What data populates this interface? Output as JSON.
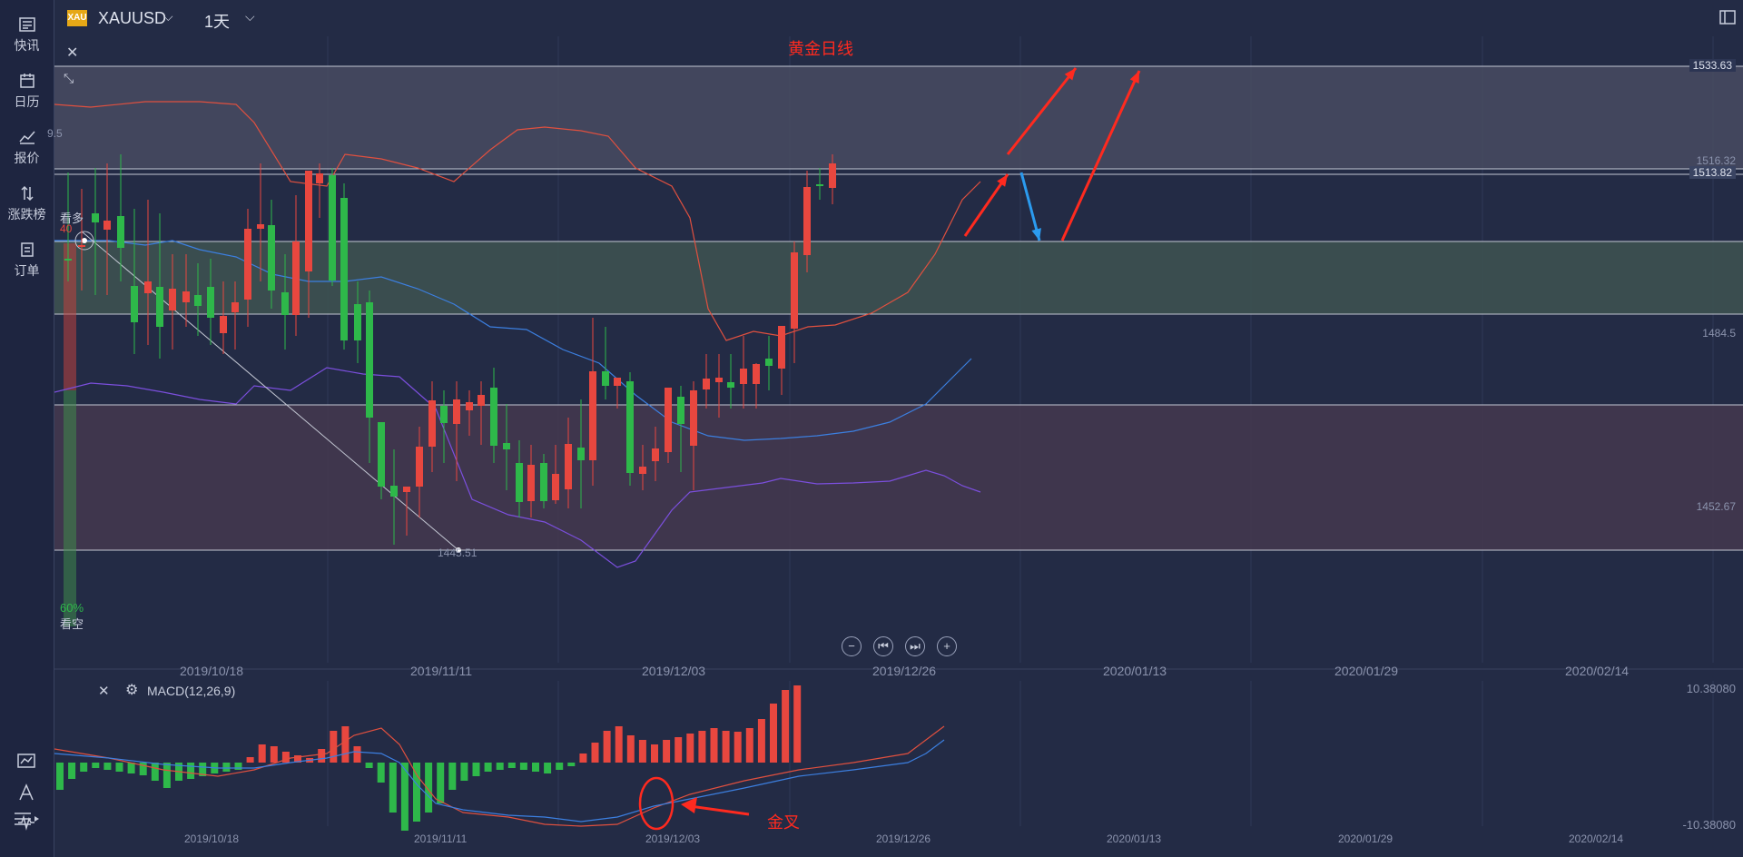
{
  "sidebar": {
    "items": [
      {
        "label": "快讯",
        "icon": "news-icon"
      },
      {
        "label": "日历",
        "icon": "calendar-icon"
      },
      {
        "label": "报价",
        "icon": "quote-chart-icon"
      },
      {
        "label": "涨跌榜",
        "icon": "updown-arrows-icon"
      },
      {
        "label": "订单",
        "icon": "order-icon"
      }
    ],
    "bottom_icons": [
      "indicator-icon",
      "drawing-tool-icon",
      "wave-icon",
      "menu-icon"
    ]
  },
  "toolbar": {
    "symbol_badge": "XAU",
    "symbol": "XAUUSD",
    "timeframe": "1天"
  },
  "chart": {
    "title": "黄金日线",
    "sentiment": {
      "bull_label": "看多",
      "bull_pct": "40",
      "bear_pct": "60%",
      "bear_label": "看空"
    },
    "price_labels": [
      {
        "text": "1533.63",
        "boxed": true
      },
      {
        "text": "1516.32",
        "boxed": false
      },
      {
        "text": "1513.82",
        "boxed": true
      },
      {
        "text": "1484.5",
        "boxed": false
      },
      {
        "text": "1452.67",
        "boxed": false
      }
    ],
    "fib_left_label": "9.5",
    "low_label": "1445.51",
    "dates": [
      "2019/10/18",
      "2019/11/11",
      "2019/12/03",
      "2019/12/26",
      "2020/01/13",
      "2020/01/29",
      "2020/02/14"
    ],
    "nav_buttons": [
      "−",
      "⏮",
      "⏭",
      "+"
    ]
  },
  "macd": {
    "label": "MACD(12,26,9)",
    "max": "10.38080",
    "min": "-10.38080",
    "annotation": "金叉"
  },
  "colors": {
    "up": "#e8473f",
    "down": "#2eb84a",
    "background": "#232b45",
    "annotation": "#ff2a1f",
    "arrow_blue": "#2b9bef"
  }
}
